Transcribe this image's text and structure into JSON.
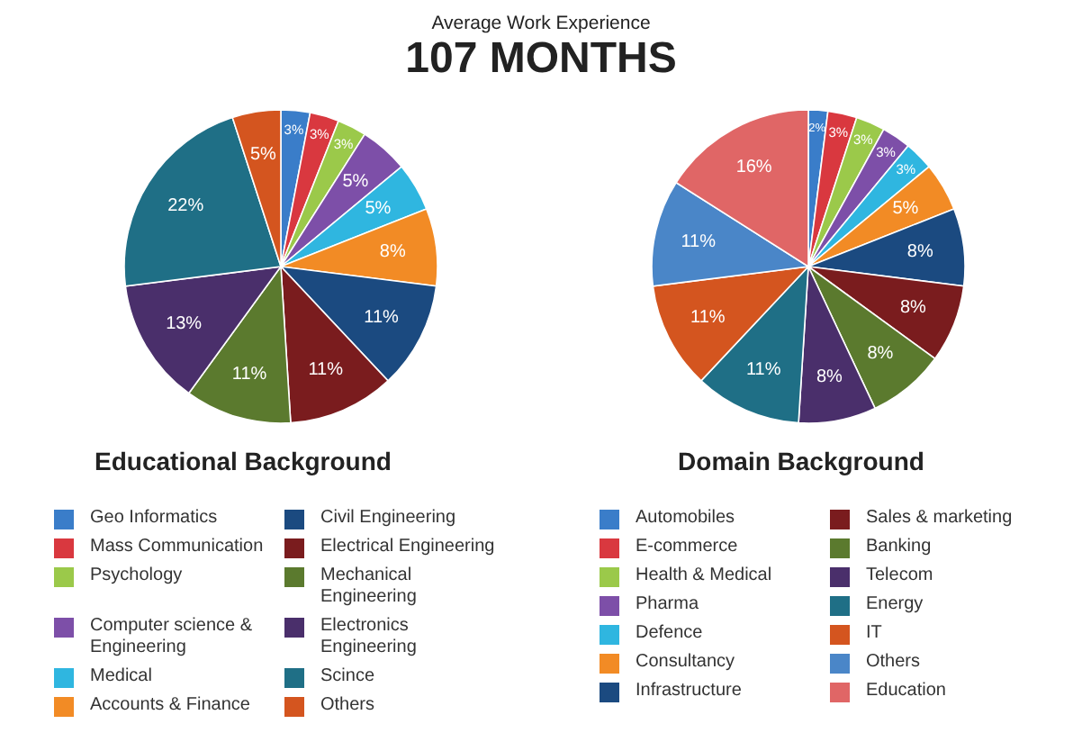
{
  "chart_data": [
    {
      "type": "pie",
      "title": "Educational Background",
      "annotations": [
        "Average Work Experience",
        "107 MONTHS"
      ],
      "legend": "bottom",
      "categories": [
        "Geo Informatics",
        "Mass Communication",
        "Psychology",
        "Computer science & Engineering",
        "Medical",
        "Accounts & Finance",
        "Civil Engineering",
        "Electrical Engineering",
        "Mechanical Engineering",
        "Electronics Engineering",
        "Scince",
        "Others"
      ],
      "values": [
        3,
        3,
        3,
        5,
        5,
        8,
        11,
        11,
        11,
        13,
        22,
        5
      ],
      "value_labels": [
        "3%",
        "3%",
        "3%",
        "5%",
        "5%",
        "8%",
        "11%",
        "11%",
        "11%",
        "13%",
        "22%",
        "5%"
      ],
      "colors": [
        "#3a7dc9",
        "#d9383f",
        "#9bc94a",
        "#7d4fa8",
        "#2fb6e0",
        "#f28b25",
        "#1b4a80",
        "#7a1c1e",
        "#5b7a2e",
        "#4a2f6b",
        "#1f6f86",
        "#d4551f"
      ]
    },
    {
      "type": "pie",
      "title": "Domain Background",
      "legend": "bottom",
      "categories": [
        "Automobiles",
        "E-commerce",
        "Health & Medical",
        "Pharma",
        "Defence",
        "Consultancy",
        "Infrastructure",
        "Sales & marketing",
        "Banking",
        "Telecom",
        "Energy",
        "IT",
        "Others",
        "Education"
      ],
      "values": [
        2,
        3,
        3,
        3,
        3,
        5,
        8,
        8,
        8,
        8,
        11,
        11,
        11,
        16
      ],
      "value_labels": [
        "2%",
        "3%",
        "3%",
        "3%",
        "3%",
        "5%",
        "8%",
        "8%",
        "8%",
        "8%",
        "11%",
        "11%",
        "11%",
        "16%"
      ],
      "colors": [
        "#3a7dc9",
        "#d9383f",
        "#9bc94a",
        "#7d4fa8",
        "#2fb6e0",
        "#f28b25",
        "#1b4a80",
        "#7a1c1e",
        "#5b7a2e",
        "#4a2f6b",
        "#1f6f86",
        "#d4551f",
        "#4a86c8",
        "#e06666"
      ]
    }
  ]
}
